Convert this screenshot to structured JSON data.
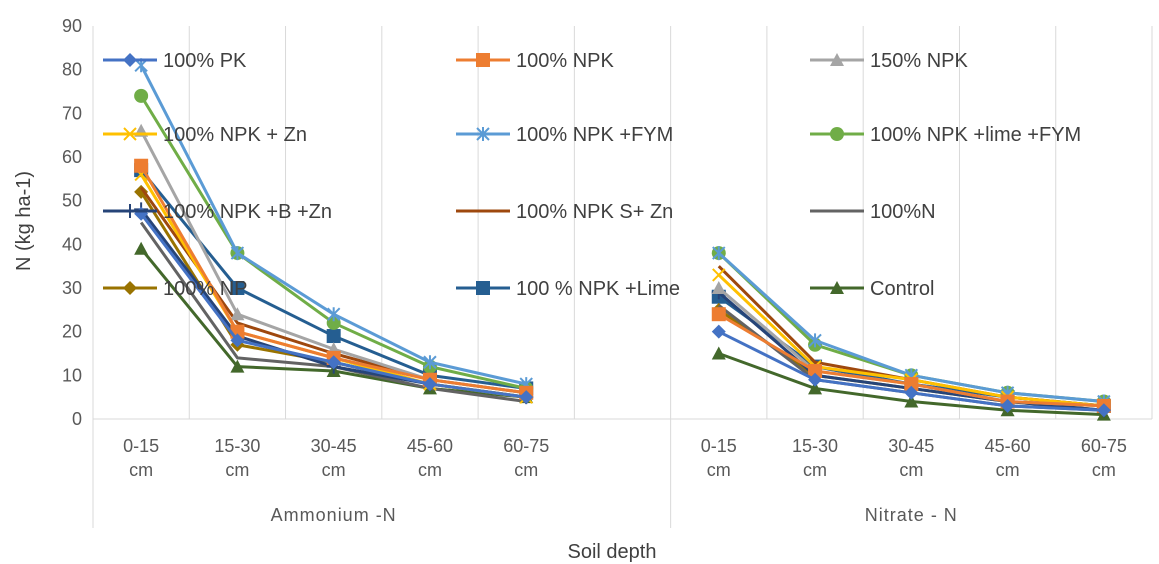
{
  "chart_data": {
    "type": "line",
    "title": "",
    "xlabel": "Soil depth",
    "ylabel": "N (kg ha-1)",
    "ylim": [
      0,
      90
    ],
    "yticks": [
      0,
      10,
      20,
      30,
      40,
      50,
      60,
      70,
      80,
      90
    ],
    "groups": [
      {
        "name": "Ammonium -N",
        "categories": [
          "0-15 cm",
          "15-30 cm",
          "30-45 cm",
          "45-60 cm",
          "60-75 cm"
        ]
      },
      {
        "name": "Nitrate  - N",
        "categories": [
          "0-15 cm",
          "15-30 cm",
          "30-45 cm",
          "45-60 cm",
          "60-75 cm"
        ]
      }
    ],
    "grid": "vertical",
    "legend": "top",
    "series": [
      {
        "name": "100% PK",
        "color": "#4472C4",
        "marker": "diamond",
        "ammonium": [
          47,
          18,
          13,
          8,
          5
        ],
        "nitrate": [
          20,
          9,
          6,
          3,
          2
        ]
      },
      {
        "name": "100% NPK",
        "color": "#ED7D31",
        "marker": "square",
        "ammonium": [
          58,
          20,
          14,
          9,
          6
        ],
        "nitrate": [
          24,
          11,
          8,
          4,
          3
        ]
      },
      {
        "name": "150% NPK",
        "color": "#A5A5A5",
        "marker": "triangle",
        "ammonium": [
          66,
          24,
          16,
          9,
          6
        ],
        "nitrate": [
          30,
          11,
          8,
          4,
          3
        ]
      },
      {
        "name": "100% NPK + Zn",
        "color": "#FFC000",
        "marker": "x",
        "ammonium": [
          56,
          20,
          14,
          8,
          5
        ],
        "nitrate": [
          33,
          12,
          9,
          5,
          3
        ]
      },
      {
        "name": "100% NPK +FYM",
        "color": "#5B9BD5",
        "marker": "star",
        "ammonium": [
          81,
          38,
          24,
          13,
          8
        ],
        "nitrate": [
          38,
          18,
          10,
          6,
          4
        ]
      },
      {
        "name": "100% NPK +lime +FYM",
        "color": "#70AD47",
        "marker": "circle",
        "ammonium": [
          74,
          38,
          22,
          12,
          7
        ],
        "nitrate": [
          38,
          17,
          10,
          6,
          4
        ]
      },
      {
        "name": "100% NPK +B +Zn",
        "color": "#264478",
        "marker": "plus",
        "ammonium": [
          48,
          19,
          12,
          8,
          5
        ],
        "nitrate": [
          29,
          10,
          7,
          4,
          2
        ]
      },
      {
        "name": "100% NPK S+ Zn",
        "color": "#9E480E",
        "marker": "none",
        "ammonium": [
          53,
          22,
          15,
          9,
          6
        ],
        "nitrate": [
          35,
          13,
          9,
          5,
          3
        ]
      },
      {
        "name": "100%N",
        "color": "#636363",
        "marker": "none",
        "ammonium": [
          45,
          14,
          12,
          7,
          4
        ],
        "nitrate": [
          26,
          9,
          6,
          3,
          2
        ]
      },
      {
        "name": "100% NP",
        "color": "#997300",
        "marker": "diamond",
        "ammonium": [
          52,
          17,
          13,
          8,
          5
        ],
        "nitrate": [
          25,
          10,
          7,
          4,
          2
        ]
      },
      {
        "name": "100 % NPK +Lime",
        "color": "#255E91",
        "marker": "square",
        "ammonium": [
          57,
          30,
          19,
          10,
          7
        ],
        "nitrate": [
          28,
          12,
          8,
          5,
          3
        ]
      },
      {
        "name": "Control",
        "color": "#43682B",
        "marker": "triangle",
        "ammonium": [
          39,
          12,
          11,
          7,
          5
        ],
        "nitrate": [
          15,
          7,
          4,
          2,
          1
        ]
      }
    ]
  }
}
